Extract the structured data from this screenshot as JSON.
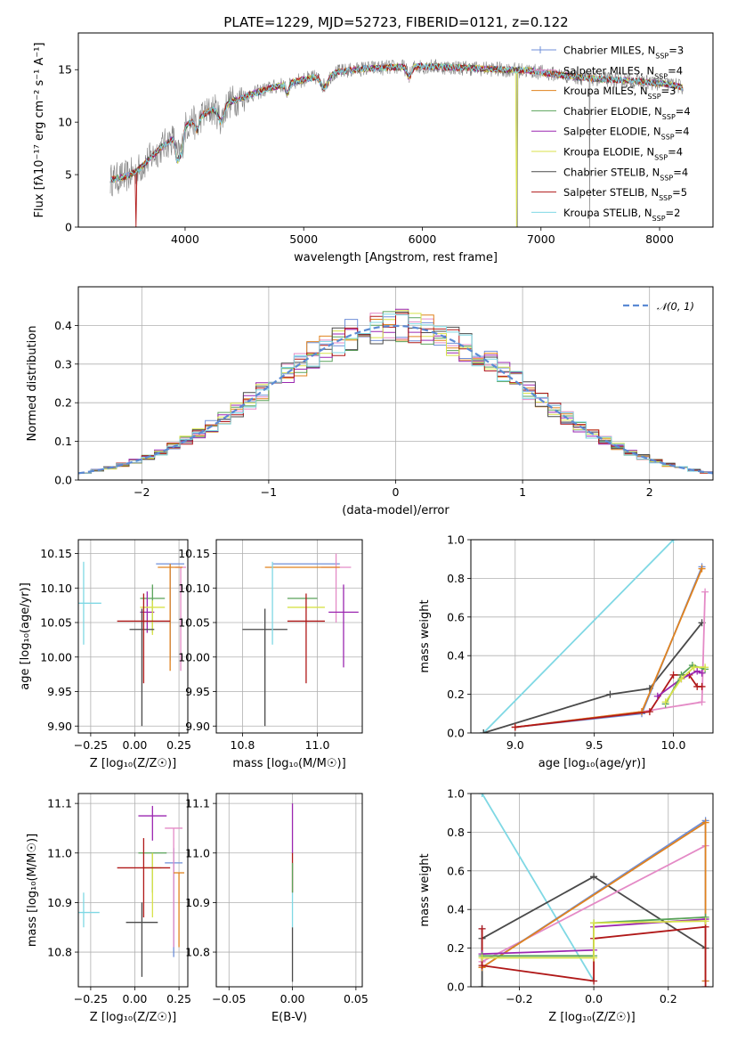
{
  "figure": {
    "title": "PLATE=1229, MJD=52723, FIBERID=0121, z=0.122"
  },
  "chart_data": [
    {
      "id": "spectrum",
      "type": "line",
      "title": "PLATE=1229, MJD=52723, FIBERID=0121, z=0.122",
      "xlabel": "wavelength [Angstrom, rest frame]",
      "ylabel": "Flux [fλ10⁻¹⁷ erg cm⁻² s⁻¹ A⁻¹]",
      "xlim": [
        3100,
        8450
      ],
      "ylim": [
        0,
        18.5
      ],
      "xticks": [
        4000,
        5000,
        6000,
        7000,
        8000
      ],
      "yticks": [
        0,
        5,
        10,
        15
      ],
      "grid": false,
      "legend_position": "top-right",
      "spectrum_anchor": {
        "x": [
          3370,
          3500,
          3600,
          3700,
          3800,
          3900,
          4000,
          4100,
          4200,
          4300,
          4500,
          4700,
          4900,
          5100,
          5300,
          5500,
          5700,
          5900,
          6100,
          6300,
          6500,
          6700,
          6900,
          7100,
          7300,
          7500,
          7700,
          7900,
          8100,
          8200
        ],
        "y": [
          4.5,
          4.8,
          5.4,
          6.5,
          7.6,
          8.5,
          9.6,
          10.4,
          11.0,
          11.6,
          12.4,
          13.2,
          13.8,
          14.3,
          14.8,
          15.1,
          15.2,
          15.3,
          15.3,
          15.2,
          15.1,
          15.0,
          14.9,
          14.6,
          14.3,
          14.1,
          14.0,
          13.8,
          13.6,
          13.3
        ]
      },
      "series": [
        {
          "name": "Chabrier MILES, N",
          "sub": "SSP",
          "suffix": "=3",
          "color": "#6f8fd8",
          "marker": "+"
        },
        {
          "name": "Salpeter MILES, N",
          "sub": "SSP",
          "suffix": "=4",
          "color": "#e48ac6",
          "marker": "+"
        },
        {
          "name": "Kroupa MILES, N",
          "sub": "SSP",
          "suffix": "=3",
          "color": "#e0821e",
          "marker": ""
        },
        {
          "name": "Chabrier ELODIE, N",
          "sub": "SSP",
          "suffix": "=4",
          "color": "#5aa35a",
          "marker": ""
        },
        {
          "name": "Salpeter ELODIE, N",
          "sub": "SSP",
          "suffix": "=4",
          "color": "#9b27b0",
          "marker": ""
        },
        {
          "name": "Kroupa ELODIE, N",
          "sub": "SSP",
          "suffix": "=4",
          "color": "#d8e24a",
          "marker": ""
        },
        {
          "name": "Chabrier STELIB, N",
          "sub": "SSP",
          "suffix": "=4",
          "color": "#4a4a4a",
          "marker": ""
        },
        {
          "name": "Salpeter STELIB, N",
          "sub": "SSP",
          "suffix": "=5",
          "color": "#b01818",
          "marker": ""
        },
        {
          "name": "Kroupa STELIB, N",
          "sub": "SSP",
          "suffix": "=2",
          "color": "#7fd8e4",
          "marker": ""
        }
      ],
      "data_color": "#808080"
    },
    {
      "id": "residual-hist",
      "type": "bar",
      "xlabel": "(data-model)/error",
      "ylabel": "Normed distribution",
      "xlim": [
        -2.5,
        2.5
      ],
      "ylim": [
        0,
        0.5
      ],
      "xticks": [
        -2,
        -1,
        0,
        1,
        2
      ],
      "yticks": [
        0.0,
        0.1,
        0.2,
        0.3,
        0.4
      ],
      "grid": true,
      "legend": "𝒩(0, 1)",
      "legend_position": "top-right",
      "curve_color": "#5b8ad4",
      "bin_width": 0.1
    },
    {
      "id": "age-vs-z",
      "type": "scatter",
      "xlabel": "Z [log₁₀(Z/Z☉)]",
      "ylabel": "age  [log₁₀(age/yr)]",
      "xlim": [
        -0.32,
        0.3
      ],
      "ylim": [
        9.89,
        10.17
      ],
      "xticks": [
        -0.25,
        0.0,
        0.25
      ],
      "yticks": [
        9.9,
        9.95,
        10.0,
        10.05,
        10.1,
        10.15
      ],
      "grid": true,
      "points": [
        {
          "color": "#6f8fd8",
          "x": 0.2,
          "xerr": 0.08,
          "y": 10.135,
          "yerr_lo": 0.14,
          "yerr_hi": 0.0
        },
        {
          "color": "#e48ac6",
          "x": 0.26,
          "xerr": 0.03,
          "y": 10.13,
          "yerr_lo": 0.15,
          "yerr_hi": 0.0
        },
        {
          "color": "#e0821e",
          "x": 0.2,
          "xerr": 0.07,
          "y": 10.13,
          "yerr_lo": 0.15,
          "yerr_hi": 0.005
        },
        {
          "color": "#5aa35a",
          "x": 0.1,
          "xerr": 0.07,
          "y": 10.085,
          "yerr_lo": 0.05,
          "yerr_hi": 0.02
        },
        {
          "color": "#9b27b0",
          "x": 0.07,
          "xerr": 0.04,
          "y": 10.065,
          "yerr_lo": 0.03,
          "yerr_hi": 0.03
        },
        {
          "color": "#d8e24a",
          "x": 0.1,
          "xerr": 0.07,
          "y": 10.072,
          "yerr_lo": 0.04,
          "yerr_hi": 0.01
        },
        {
          "color": "#4a4a4a",
          "x": 0.04,
          "xerr": 0.07,
          "y": 10.04,
          "yerr_lo": 0.14,
          "yerr_hi": 0.03
        },
        {
          "color": "#b01818",
          "x": 0.05,
          "xerr": 0.15,
          "y": 10.052,
          "yerr_lo": 0.09,
          "yerr_hi": 0.04
        },
        {
          "color": "#7fd8e4",
          "x": -0.29,
          "xerr": 0.1,
          "y": 10.078,
          "yerr_lo": 0.06,
          "yerr_hi": 0.06
        }
      ]
    },
    {
      "id": "age-vs-mass",
      "type": "scatter",
      "xlabel": "mass [log₁₀(M/M☉)]",
      "ylabel": "",
      "xlim": [
        10.73,
        11.12
      ],
      "ylim": [
        9.89,
        10.17
      ],
      "xticks": [
        10.8,
        11.0
      ],
      "yticks": [
        9.9,
        9.95,
        10.0,
        10.05,
        10.1,
        10.15
      ],
      "grid": true,
      "points": [
        {
          "color": "#6f8fd8",
          "x": 10.97,
          "xerr": 0.09,
          "y": 10.135,
          "yerr_lo": 0.0,
          "yerr_hi": 0.0
        },
        {
          "color": "#e48ac6",
          "x": 11.05,
          "xerr": 0.04,
          "y": 10.13,
          "yerr_lo": 0.08,
          "yerr_hi": 0.02
        },
        {
          "color": "#e0821e",
          "x": 10.96,
          "xerr": 0.1,
          "y": 10.13,
          "yerr_lo": 0.0,
          "yerr_hi": 0.0
        },
        {
          "color": "#5aa35a",
          "x": 10.96,
          "xerr": 0.04,
          "y": 10.085,
          "yerr_lo": 0.0,
          "yerr_hi": 0.0
        },
        {
          "color": "#9b27b0",
          "x": 11.07,
          "xerr": 0.04,
          "y": 10.065,
          "yerr_lo": 0.08,
          "yerr_hi": 0.04
        },
        {
          "color": "#d8e24a",
          "x": 10.97,
          "xerr": 0.05,
          "y": 10.072,
          "yerr_lo": 0.0,
          "yerr_hi": 0.0
        },
        {
          "color": "#4a4a4a",
          "x": 10.86,
          "xerr": 0.06,
          "y": 10.04,
          "yerr_lo": 0.14,
          "yerr_hi": 0.03
        },
        {
          "color": "#b01818",
          "x": 10.97,
          "xerr": 0.05,
          "y": 10.052,
          "yerr_lo": 0.09,
          "yerr_hi": 0.04
        },
        {
          "color": "#7fd8e4",
          "x": 10.88,
          "xerr": 0.0,
          "y": 10.078,
          "yerr_lo": 0.06,
          "yerr_hi": 0.06
        }
      ]
    },
    {
      "id": "mass-weight-vs-age",
      "type": "line",
      "xlabel": "age  [log₁₀(age/yr)]",
      "ylabel": "mass weight",
      "xlim": [
        8.72,
        10.25
      ],
      "ylim": [
        0,
        1
      ],
      "xticks": [
        9.0,
        9.5,
        10.0
      ],
      "yticks": [
        0.0,
        0.2,
        0.4,
        0.6,
        0.8,
        1.0
      ],
      "grid": true,
      "series": [
        {
          "color": "#7fd8e4",
          "x": [
            8.8,
            10.0
          ],
          "y": [
            0.0,
            1.0
          ]
        },
        {
          "color": "#4a4a4a",
          "x": [
            8.8,
            9.6,
            9.85,
            10.18
          ],
          "y": [
            0.0,
            0.2,
            0.23,
            0.57
          ]
        },
        {
          "color": "#e48ac6",
          "x": [
            9.0,
            9.8,
            10.18,
            10.2
          ],
          "y": [
            0.03,
            0.11,
            0.16,
            0.73
          ]
        },
        {
          "color": "#6f8fd8",
          "x": [
            9.0,
            9.8,
            10.18
          ],
          "y": [
            0.03,
            0.1,
            0.86
          ]
        },
        {
          "color": "#e0821e",
          "x": [
            9.0,
            9.8,
            10.18
          ],
          "y": [
            0.03,
            0.11,
            0.85
          ]
        },
        {
          "color": "#b01818",
          "x": [
            9.0,
            9.85,
            10.0,
            10.1,
            10.15,
            10.18
          ],
          "y": [
            0.03,
            0.11,
            0.3,
            0.3,
            0.24,
            0.24
          ]
        },
        {
          "color": "#9b27b0",
          "x": [
            9.9,
            10.05,
            10.15,
            10.18
          ],
          "y": [
            0.19,
            0.28,
            0.32,
            0.31
          ]
        },
        {
          "color": "#5aa35a",
          "x": [
            9.95,
            10.05,
            10.12,
            10.2
          ],
          "y": [
            0.15,
            0.3,
            0.35,
            0.33
          ]
        },
        {
          "color": "#d8e24a",
          "x": [
            9.95,
            10.05,
            10.13,
            10.2
          ],
          "y": [
            0.16,
            0.28,
            0.34,
            0.34
          ]
        }
      ]
    },
    {
      "id": "mass-vs-z",
      "type": "scatter",
      "xlabel": "Z [log₁₀(Z/Z☉)]",
      "ylabel": "mass [log₁₀(M/M☉)]",
      "xlim": [
        -0.32,
        0.3
      ],
      "ylim": [
        10.73,
        11.12
      ],
      "xticks": [
        -0.25,
        0.0,
        0.25
      ],
      "yticks": [
        10.8,
        10.9,
        11.0,
        11.1
      ],
      "grid": true,
      "points": [
        {
          "color": "#6f8fd8",
          "x": 0.22,
          "xerr": 0.05,
          "y": 10.98,
          "yerr_lo": 0.19,
          "yerr_hi": 0.03
        },
        {
          "color": "#e48ac6",
          "x": 0.22,
          "xerr": 0.05,
          "y": 11.05,
          "yerr_lo": 0.24,
          "yerr_hi": 0.0
        },
        {
          "color": "#e0821e",
          "x": 0.25,
          "xerr": 0.03,
          "y": 10.96,
          "yerr_lo": 0.15,
          "yerr_hi": 0.0
        },
        {
          "color": "#5aa35a",
          "x": 0.1,
          "xerr": 0.08,
          "y": 11.0,
          "yerr_lo": 0.08,
          "yerr_hi": 0.0
        },
        {
          "color": "#9b27b0",
          "x": 0.1,
          "xerr": 0.08,
          "y": 11.075,
          "yerr_lo": 0.05,
          "yerr_hi": 0.02
        },
        {
          "color": "#d8e24a",
          "x": 0.1,
          "xerr": 0.05,
          "y": 10.97,
          "yerr_lo": 0.1,
          "yerr_hi": 0.03
        },
        {
          "color": "#4a4a4a",
          "x": 0.04,
          "xerr": 0.09,
          "y": 10.86,
          "yerr_lo": 0.11,
          "yerr_hi": 0.04
        },
        {
          "color": "#b01818",
          "x": 0.05,
          "xerr": 0.15,
          "y": 10.97,
          "yerr_lo": 0.1,
          "yerr_hi": 0.06
        },
        {
          "color": "#7fd8e4",
          "x": -0.29,
          "xerr": 0.09,
          "y": 10.88,
          "yerr_lo": 0.03,
          "yerr_hi": 0.04
        }
      ]
    },
    {
      "id": "mass-vs-ebv",
      "type": "scatter",
      "xlabel": "E(B-V)",
      "ylabel": "",
      "xlim": [
        -0.06,
        0.055
      ],
      "ylim": [
        10.73,
        11.12
      ],
      "xticks": [
        -0.05,
        0.0,
        0.05
      ],
      "yticks": [
        10.8,
        10.9,
        11.0,
        11.1
      ],
      "grid": true,
      "points": [
        {
          "color": "#9b27b0",
          "x": 0.0,
          "xerr": 0.0,
          "y": 11.05,
          "yerr_lo": 0.05,
          "yerr_hi": 0.05
        },
        {
          "color": "#b01818",
          "x": 0.0,
          "xerr": 0.0,
          "y": 10.97,
          "yerr_lo": 0.05,
          "yerr_hi": 0.03
        },
        {
          "color": "#5aa35a",
          "x": 0.0,
          "xerr": 0.0,
          "y": 10.95,
          "yerr_lo": 0.03,
          "yerr_hi": 0.03
        },
        {
          "color": "#4a4a4a",
          "x": 0.0,
          "xerr": 0.0,
          "y": 10.82,
          "yerr_lo": 0.08,
          "yerr_hi": 0.03
        },
        {
          "color": "#7fd8e4",
          "x": 0.0,
          "xerr": 0.0,
          "y": 10.88,
          "yerr_lo": 0.03,
          "yerr_hi": 0.04
        }
      ]
    },
    {
      "id": "mass-weight-vs-z",
      "type": "line",
      "xlabel": "Z [log₁₀(Z/Z☉)]",
      "ylabel": "mass weight",
      "xlim": [
        -0.33,
        0.32
      ],
      "ylim": [
        0,
        1
      ],
      "xticks": [
        -0.2,
        0.0,
        0.2
      ],
      "yticks": [
        0.0,
        0.2,
        0.4,
        0.6,
        0.8,
        1.0
      ],
      "grid": true,
      "series": [
        {
          "color": "#7fd8e4",
          "x": [
            -0.3,
            0.0
          ],
          "y": [
            1.0,
            0.03
          ]
        },
        {
          "color": "#4a4a4a",
          "x": [
            -0.3,
            -0.3,
            0.0,
            0.3
          ],
          "y": [
            0.0,
            0.25,
            0.57,
            0.2
          ]
        },
        {
          "color": "#e48ac6",
          "x": [
            -0.3,
            0.3
          ],
          "y": [
            0.13,
            0.73
          ]
        },
        {
          "color": "#6f8fd8",
          "x": [
            -0.3,
            -0.3,
            0.3,
            0.3
          ],
          "y": [
            0.3,
            0.1,
            0.86,
            0.03
          ]
        },
        {
          "color": "#e0821e",
          "x": [
            -0.3,
            0.3,
            0.3
          ],
          "y": [
            0.1,
            0.85,
            0.03
          ]
        },
        {
          "color": "#b01818",
          "x": [
            -0.3,
            -0.3,
            0.0,
            0.0,
            0.3,
            0.3
          ],
          "y": [
            0.3,
            0.11,
            0.03,
            0.25,
            0.31,
            0.0
          ]
        },
        {
          "color": "#9b27b0",
          "x": [
            -0.3,
            0.0,
            0.0,
            0.3
          ],
          "y": [
            0.17,
            0.19,
            0.31,
            0.35
          ]
        },
        {
          "color": "#5aa35a",
          "x": [
            -0.3,
            0.0,
            0.0,
            0.3
          ],
          "y": [
            0.16,
            0.16,
            0.33,
            0.36
          ]
        },
        {
          "color": "#d8e24a",
          "x": [
            -0.3,
            0.0,
            0.0,
            0.3
          ],
          "y": [
            0.15,
            0.15,
            0.33,
            0.34
          ]
        }
      ]
    }
  ]
}
